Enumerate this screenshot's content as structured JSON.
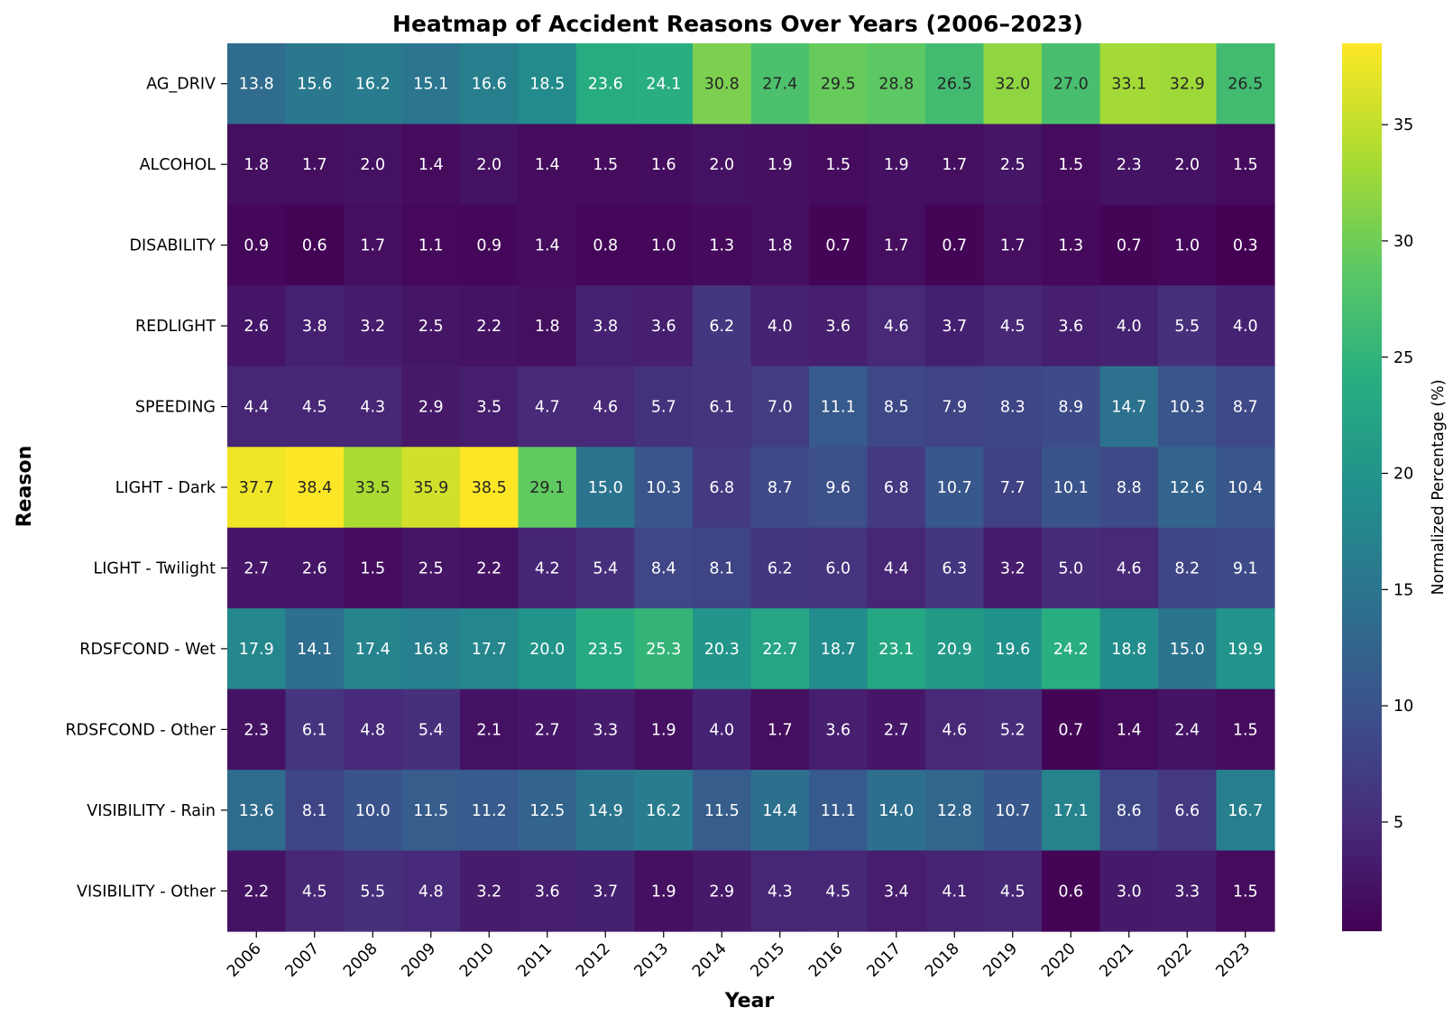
{
  "chart_data": {
    "type": "heatmap",
    "title": "Heatmap of Accident Reasons Over Years (2006–2023)",
    "xlabel": "Year",
    "ylabel": "Reason",
    "colorbar_label": "Normalized Percentage (%)",
    "colormap": "viridis",
    "vmin": 0.3,
    "vmax": 38.5,
    "colorbar_ticks": [
      5,
      10,
      15,
      20,
      25,
      30,
      35
    ],
    "x": [
      "2006",
      "2007",
      "2008",
      "2009",
      "2010",
      "2011",
      "2012",
      "2013",
      "2014",
      "2015",
      "2016",
      "2017",
      "2018",
      "2019",
      "2020",
      "2021",
      "2022",
      "2023"
    ],
    "y": [
      "AG_DRIV",
      "ALCOHOL",
      "DISABILITY",
      "REDLIGHT",
      "SPEEDING",
      "LIGHT - Dark",
      "LIGHT - Twilight",
      "RDSFCOND - Wet",
      "RDSFCOND - Other",
      "VISIBILITY - Rain",
      "VISIBILITY - Other"
    ],
    "values": [
      [
        13.8,
        15.6,
        16.2,
        15.1,
        16.6,
        18.5,
        23.6,
        24.1,
        30.8,
        27.4,
        29.5,
        28.8,
        26.5,
        32.0,
        27.0,
        33.1,
        32.9,
        26.5
      ],
      [
        1.8,
        1.7,
        2.0,
        1.4,
        2.0,
        1.4,
        1.5,
        1.6,
        2.0,
        1.9,
        1.5,
        1.9,
        1.7,
        2.5,
        1.5,
        2.3,
        2.0,
        1.5
      ],
      [
        0.9,
        0.6,
        1.7,
        1.1,
        0.9,
        1.4,
        0.8,
        1.0,
        1.3,
        1.8,
        0.7,
        1.7,
        0.7,
        1.7,
        1.3,
        0.7,
        1.0,
        0.3
      ],
      [
        2.6,
        3.8,
        3.2,
        2.5,
        2.2,
        1.8,
        3.8,
        3.6,
        6.2,
        4.0,
        3.6,
        4.6,
        3.7,
        4.5,
        3.6,
        4.0,
        5.5,
        4.0
      ],
      [
        4.4,
        4.5,
        4.3,
        2.9,
        3.5,
        4.7,
        4.6,
        5.7,
        6.1,
        7.0,
        11.1,
        8.5,
        7.9,
        8.3,
        8.9,
        14.7,
        10.3,
        8.7
      ],
      [
        37.7,
        38.4,
        33.5,
        35.9,
        38.5,
        29.1,
        15.0,
        10.3,
        6.8,
        8.7,
        9.6,
        6.8,
        10.7,
        7.7,
        10.1,
        8.8,
        12.6,
        10.4
      ],
      [
        2.7,
        2.6,
        1.5,
        2.5,
        2.2,
        4.2,
        5.4,
        8.4,
        8.1,
        6.2,
        6.0,
        4.4,
        6.3,
        3.2,
        5.0,
        4.6,
        8.2,
        9.1
      ],
      [
        17.9,
        14.1,
        17.4,
        16.8,
        17.7,
        20.0,
        23.5,
        25.3,
        20.3,
        22.7,
        18.7,
        23.1,
        20.9,
        19.6,
        24.2,
        18.8,
        15.0,
        19.9
      ],
      [
        2.3,
        6.1,
        4.8,
        5.4,
        2.1,
        2.7,
        3.3,
        1.9,
        4.0,
        1.7,
        3.6,
        2.7,
        4.6,
        5.2,
        0.7,
        1.4,
        2.4,
        1.5
      ],
      [
        13.6,
        8.1,
        10.0,
        11.5,
        11.2,
        12.5,
        14.9,
        16.2,
        11.5,
        14.4,
        11.1,
        14.0,
        12.8,
        10.7,
        17.1,
        8.6,
        6.6,
        16.7
      ],
      [
        2.2,
        4.5,
        5.5,
        4.8,
        3.2,
        3.6,
        3.7,
        1.9,
        2.9,
        4.3,
        4.5,
        3.4,
        4.1,
        4.5,
        0.6,
        3.0,
        3.3,
        1.5
      ]
    ]
  }
}
